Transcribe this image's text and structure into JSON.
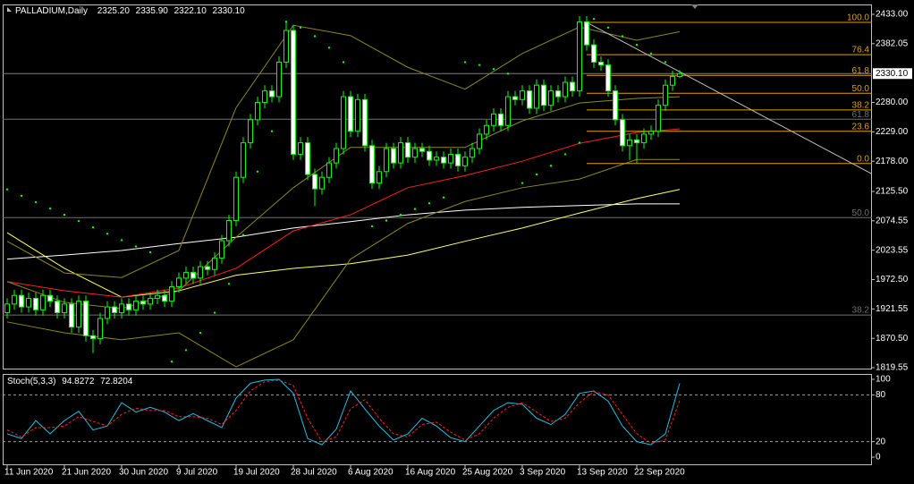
{
  "chart_data": [
    {
      "type": "candlestick",
      "title": "PALLADIUM,Daily",
      "ohlc_labels": [
        "2325.20",
        "2335.90",
        "2322.10",
        "2330.10"
      ],
      "up_color": "#000000",
      "down_color": "#ffffff",
      "wick_color": "#00ff00",
      "open": [
        1915,
        1930,
        1945,
        1925,
        1940,
        1920,
        1945,
        1935,
        1915,
        1930,
        1890,
        1935,
        1875,
        1870,
        1905,
        1925,
        1915,
        1930,
        1920,
        1935,
        1930,
        1940,
        1945,
        1935,
        1960,
        1975,
        1985,
        1975,
        1995,
        1990,
        2010,
        2040,
        2075,
        2150,
        2210,
        2250,
        2280,
        2300,
        2290,
        2350,
        2405,
        2190,
        2210,
        2155,
        2130,
        2150,
        2175,
        2200,
        2290,
        2230,
        2285,
        2205,
        2140,
        2160,
        2200,
        2175,
        2210,
        2185,
        2200,
        2195,
        2180,
        2185,
        2175,
        2190,
        2170,
        2185,
        2200,
        2225,
        2240,
        2260,
        2240,
        2290,
        2285,
        2300,
        2270,
        2310,
        2275,
        2300,
        2290,
        2315,
        2300,
        2420,
        2380,
        2350,
        2345,
        2300,
        2250,
        2205,
        2215,
        2210,
        2225,
        2230,
        2275,
        2310,
        2325.2
      ],
      "high": [
        1940,
        1955,
        1955,
        1950,
        1950,
        1955,
        1955,
        1945,
        1940,
        1940,
        1945,
        1945,
        1885,
        1915,
        1935,
        1935,
        1940,
        1940,
        1945,
        1945,
        1950,
        1955,
        1955,
        1970,
        1985,
        1995,
        1995,
        2005,
        2005,
        2020,
        2050,
        2085,
        2160,
        2220,
        2260,
        2290,
        2310,
        2310,
        2360,
        2420,
        2415,
        2220,
        2220,
        2165,
        2160,
        2185,
        2210,
        2300,
        2300,
        2295,
        2295,
        2215,
        2170,
        2210,
        2210,
        2220,
        2220,
        2210,
        2210,
        2205,
        2195,
        2195,
        2200,
        2200,
        2195,
        2210,
        2235,
        2250,
        2270,
        2270,
        2300,
        2300,
        2310,
        2310,
        2320,
        2320,
        2310,
        2310,
        2325,
        2325,
        2430,
        2430,
        2390,
        2360,
        2355,
        2310,
        2260,
        2225,
        2225,
        2235,
        2240,
        2285,
        2320,
        2335,
        2335.9
      ],
      "low": [
        1905,
        1920,
        1915,
        1915,
        1910,
        1910,
        1925,
        1905,
        1905,
        1880,
        1880,
        1865,
        1845,
        1860,
        1895,
        1905,
        1905,
        1910,
        1910,
        1920,
        1920,
        1930,
        1925,
        1925,
        1950,
        1965,
        1965,
        1965,
        1980,
        1980,
        2000,
        2030,
        2065,
        2140,
        2200,
        2240,
        2270,
        2280,
        2280,
        2340,
        2180,
        2180,
        2145,
        2100,
        2120,
        2140,
        2165,
        2190,
        2220,
        2220,
        2195,
        2130,
        2130,
        2150,
        2165,
        2165,
        2175,
        2175,
        2185,
        2170,
        2170,
        2165,
        2165,
        2160,
        2160,
        2175,
        2190,
        2215,
        2230,
        2230,
        2230,
        2275,
        2275,
        2260,
        2260,
        2265,
        2265,
        2280,
        2280,
        2290,
        2290,
        2370,
        2340,
        2335,
        2290,
        2240,
        2195,
        2180,
        2175,
        2200,
        2215,
        2220,
        2265,
        2300,
        2322.1
      ],
      "close": [
        1930,
        1945,
        1925,
        1940,
        1920,
        1945,
        1935,
        1915,
        1930,
        1890,
        1935,
        1875,
        1870,
        1905,
        1925,
        1915,
        1930,
        1920,
        1935,
        1930,
        1940,
        1945,
        1935,
        1960,
        1975,
        1985,
        1975,
        1995,
        1990,
        2010,
        2040,
        2075,
        2150,
        2210,
        2250,
        2280,
        2300,
        2290,
        2350,
        2405,
        2190,
        2210,
        2155,
        2130,
        2150,
        2175,
        2200,
        2290,
        2230,
        2285,
        2205,
        2140,
        2160,
        2200,
        2175,
        2210,
        2185,
        2200,
        2195,
        2180,
        2185,
        2175,
        2190,
        2170,
        2185,
        2200,
        2225,
        2240,
        2260,
        2240,
        2290,
        2285,
        2300,
        2270,
        2310,
        2275,
        2300,
        2290,
        2315,
        2300,
        2420,
        2380,
        2350,
        2345,
        2300,
        2250,
        2205,
        2215,
        2210,
        2225,
        2230,
        2275,
        2310,
        2325,
        2330.1
      ],
      "xlim": [
        -0.625,
        120.875
      ],
      "xticks": [
        {
          "value": 0,
          "label": "11 Jun 2020"
        },
        {
          "value": 8,
          "label": "21 Jun 2020"
        },
        {
          "value": 16,
          "label": "30 Jun 2020"
        },
        {
          "value": 24,
          "label": "9 Jul 2020"
        },
        {
          "value": 32,
          "label": "19 Jul 2020"
        },
        {
          "value": 40,
          "label": "28 Jul 2020"
        },
        {
          "value": 48,
          "label": "6 Aug 2020"
        },
        {
          "value": 56,
          "label": "16 Aug 2020"
        },
        {
          "value": 64,
          "label": "25 Aug 2020"
        },
        {
          "value": 72,
          "label": "3 Sep 2020"
        },
        {
          "value": 80,
          "label": "13 Sep 2020"
        },
        {
          "value": 88,
          "label": "22 Sep 2020"
        }
      ],
      "ylim": [
        1816.4,
        2450.1
      ],
      "yticks": [
        {
          "value": 2433,
          "label": "2433.00"
        },
        2382.05,
        {
          "value": 2280,
          "label": "2280.00"
        },
        {
          "value": 2229,
          "label": "2229.00"
        },
        {
          "value": 2178,
          "label": "2178.00"
        },
        {
          "value": 2125.5,
          "label": "2125.50"
        },
        2074.55,
        2023.55,
        {
          "value": 1972.5,
          "label": "1972.50"
        },
        1921.55,
        {
          "value": 1870.5,
          "label": "1870.50"
        },
        1819.55
      ],
      "current_price": {
        "value": 2330.1,
        "label": "2330.10"
      },
      "lines": [
        {
          "color": "#ffffff",
          "x": [
            0,
            8,
            16,
            24,
            32,
            40,
            48,
            56,
            64,
            72,
            80,
            88,
            94
          ],
          "values": [
            2008,
            2015,
            2023,
            2035,
            2046,
            2062,
            2073,
            2085,
            2093,
            2098,
            2101,
            2104,
            2104
          ]
        },
        {
          "color": "#ffff66",
          "x": [
            0,
            8,
            16,
            24,
            32,
            40,
            48,
            56,
            64,
            72,
            80,
            88,
            94
          ],
          "values": [
            2054,
            1992,
            1942,
            1953,
            1980,
            1992,
            2000,
            2015,
            2039,
            2062,
            2088,
            2113,
            2129
          ]
        },
        {
          "color": "#ff2020",
          "x": [
            0,
            8,
            16,
            24,
            32,
            40,
            48,
            56,
            64,
            72,
            80,
            88,
            94
          ],
          "values": [
            1969,
            1953,
            1942,
            1958,
            1992,
            2057,
            2085,
            2132,
            2153,
            2178,
            2209,
            2228,
            2234
          ]
        },
        {
          "color": "#8a8a20",
          "x": [
            0,
            8,
            16,
            24,
            32,
            40,
            48,
            56,
            64,
            72,
            80,
            88,
            94
          ],
          "values": [
            2039,
            1984,
            1976,
            2023,
            2271,
            2414,
            2396,
            2341,
            2303,
            2365,
            2411,
            2388,
            2403
          ]
        },
        {
          "color": "#8a8a20",
          "x": [
            0,
            8,
            16,
            24,
            32,
            40,
            48,
            56,
            64,
            72,
            80,
            88,
            94
          ],
          "values": [
            1969,
            1933,
            1922,
            1953,
            2046,
            2132,
            2202,
            2202,
            2202,
            2248,
            2279,
            2287,
            2290
          ]
        },
        {
          "color": "#8a8a20",
          "x": [
            0,
            8,
            16,
            24,
            32,
            40,
            48,
            56,
            64,
            72,
            80,
            88,
            94
          ],
          "values": [
            1899,
            1880,
            1868,
            1880,
            1821,
            1868,
            2008,
            2070,
            2108,
            2132,
            2147,
            2181,
            2181
          ]
        }
      ],
      "sar": {
        "color": "#00ff00",
        "x": [
          0,
          2,
          4,
          6,
          8,
          10,
          12,
          14,
          16,
          18,
          20,
          23,
          25,
          27,
          29,
          31,
          33,
          35,
          37,
          39,
          41,
          43,
          45,
          47,
          51,
          53,
          55,
          57,
          59,
          61,
          64,
          66,
          68,
          70,
          72,
          74,
          76,
          78,
          80,
          82,
          84,
          86,
          88,
          90,
          92
        ],
        "values": [
          2129,
          2118,
          2107,
          2096,
          2085,
          2074,
          2063,
          2052,
          2041,
          2030,
          2020,
          1830,
          1850,
          1880,
          1915,
          1965,
          2050,
          2160,
          2230,
          2420,
          2410,
          2395,
          2375,
          2350,
          2065,
          2075,
          2085,
          2095,
          2105,
          2115,
          2350,
          2345,
          2338,
          2330,
          2140,
          2155,
          2170,
          2190,
          2210,
          2425,
          2410,
          2395,
          2380,
          2365,
          2350
        ]
      },
      "trendline": {
        "color": "#c0c0c0",
        "x": [
          81,
          121
        ],
        "values": [
          2419,
          2155
        ]
      },
      "fib_color": "#e0a000",
      "fib_start": 81,
      "fib_levels": [
        {
          "label": "100.0",
          "value": 2419
        },
        {
          "label": "76.4",
          "value": 2363
        },
        {
          "label": "61.8",
          "value": 2327
        },
        {
          "label": "50.0",
          "value": 2296
        },
        {
          "label": "38.2",
          "value": 2267
        },
        {
          "label": "23.6",
          "value": 2230
        },
        {
          "label": "0.0",
          "value": 2174
        }
      ],
      "old_fib_color": "#707070",
      "old_fib_levels": [
        {
          "label": "61.8",
          "value": 2251
        },
        {
          "label": "50.0",
          "value": 2080
        },
        {
          "label": "38.2",
          "value": 1911
        }
      ]
    },
    {
      "type": "line",
      "title": "Stoch(5,3,3)",
      "x": [
        0,
        2,
        4,
        6,
        8,
        10,
        12,
        14,
        16,
        18,
        20,
        22,
        24,
        26,
        28,
        30,
        32,
        34,
        36,
        38,
        40,
        42,
        44,
        46,
        48,
        50,
        52,
        54,
        56,
        58,
        60,
        62,
        64,
        66,
        68,
        70,
        72,
        74,
        76,
        78,
        80,
        82,
        84,
        86,
        88,
        90,
        92,
        94
      ],
      "xlim": [
        -0.625,
        120.875
      ],
      "ylim": [
        -10.3,
        106.9
      ],
      "yticks": [
        100,
        80,
        20,
        0
      ],
      "levels": [
        80,
        20
      ],
      "series": [
        {
          "color": "#20c0e0",
          "dash": false,
          "values": [
            30,
            24,
            47,
            30,
            47,
            59,
            35,
            40,
            70,
            58,
            64,
            58,
            47,
            56,
            47,
            38,
            76,
            95,
            99,
            100,
            82,
            24,
            16,
            36,
            85,
            62,
            40,
            22,
            30,
            50,
            40,
            25,
            20,
            40,
            60,
            70,
            68,
            50,
            42,
            55,
            82,
            85,
            72,
            40,
            20,
            16,
            30,
            94.8272
          ]
        },
        {
          "color": "#ff2020",
          "dash": true,
          "values": [
            35,
            26,
            38,
            38,
            40,
            52,
            46,
            40,
            55,
            63,
            60,
            60,
            52,
            52,
            50,
            42,
            60,
            85,
            97,
            99,
            92,
            50,
            20,
            26,
            62,
            74,
            50,
            30,
            26,
            42,
            45,
            32,
            22,
            30,
            50,
            64,
            70,
            58,
            46,
            50,
            70,
            84,
            80,
            55,
            30,
            18,
            22,
            72.8204
          ]
        }
      ]
    }
  ]
}
